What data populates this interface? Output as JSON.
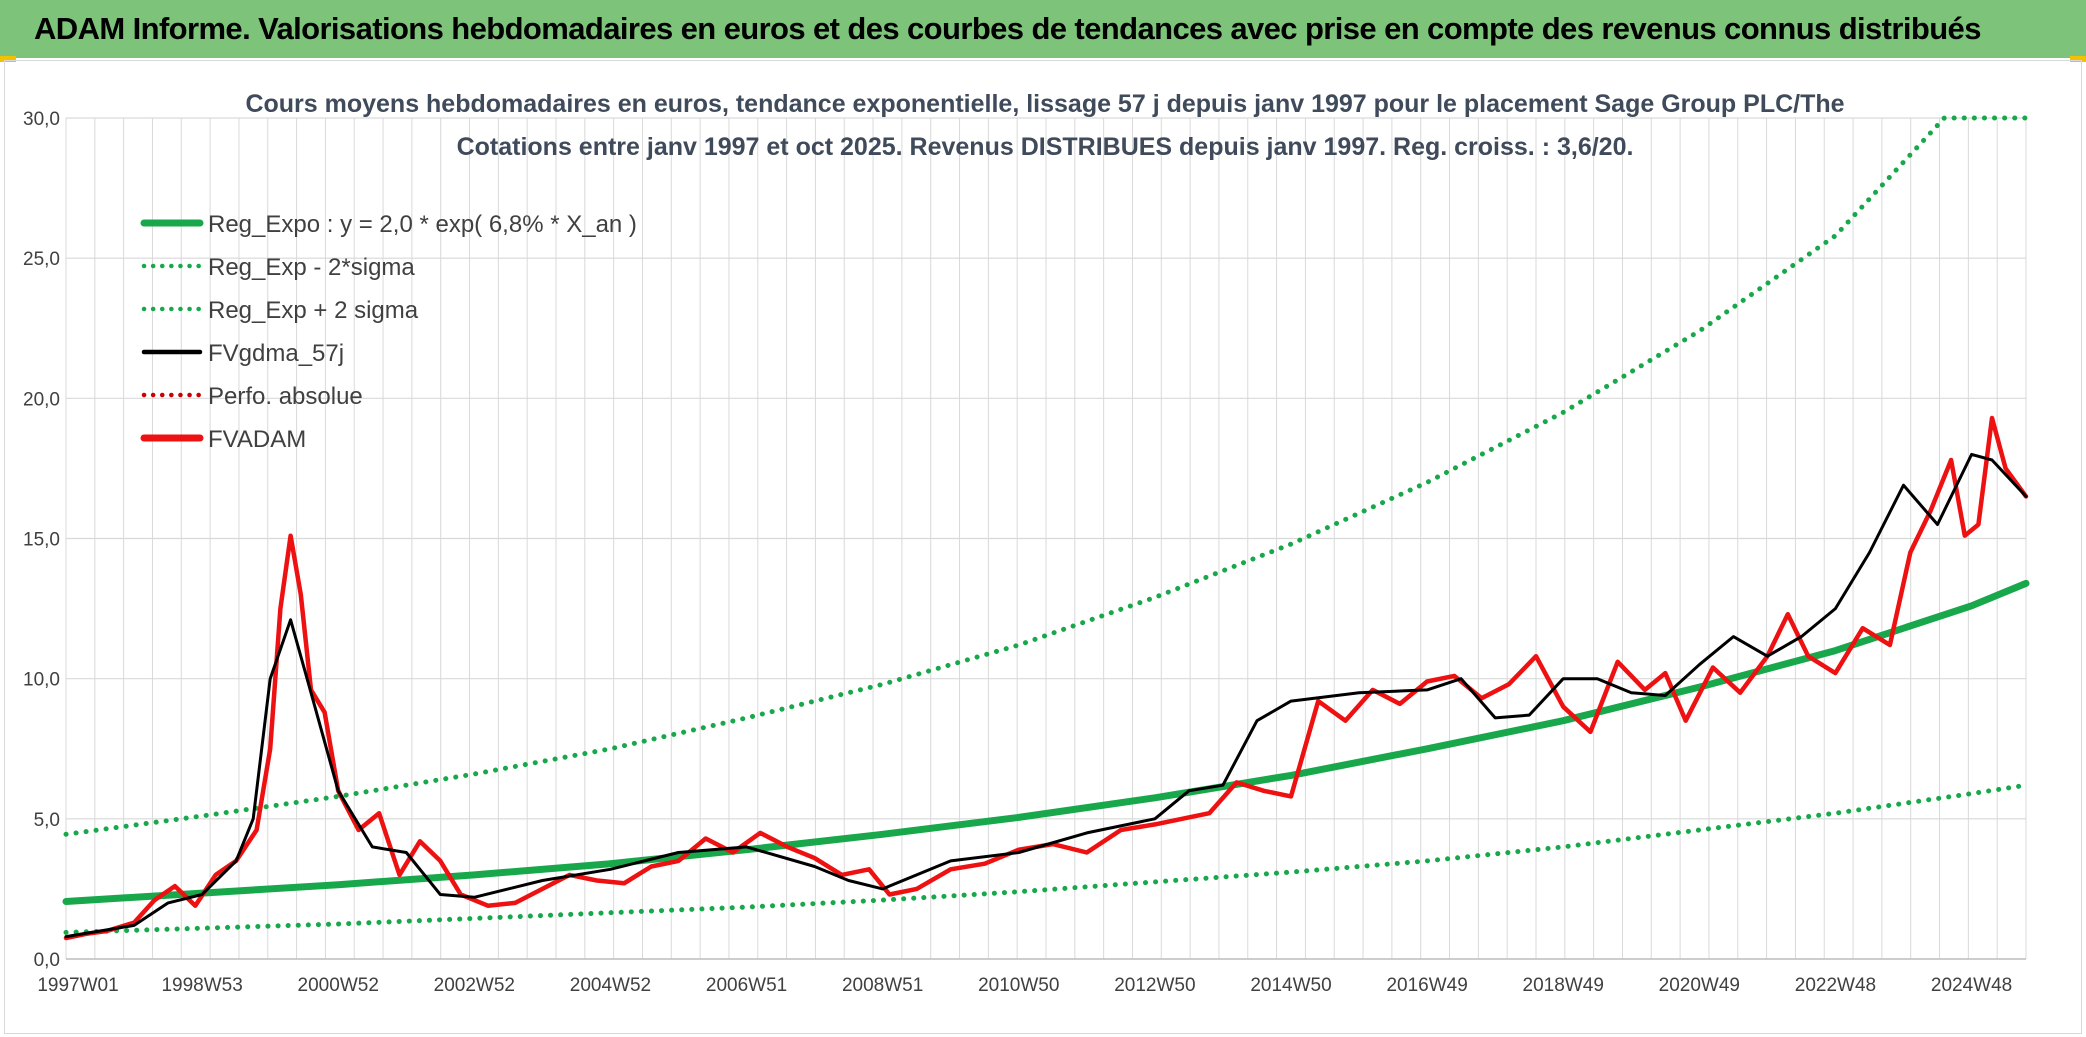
{
  "header": {
    "title": "ADAM Informe. Valorisations hebdomadaires en euros et des courbes de tendances avec prise en compte des revenus connus distribués"
  },
  "colors": {
    "header_bg": "#7dc47a",
    "regression": "#18a84b",
    "sigma_bands": "#18a84b",
    "smoothed": "#000000",
    "price": "#ee1111",
    "perf": "#cc0000",
    "grid": "#d9d9d9"
  },
  "chart_data": {
    "type": "line",
    "title": "Cours moyens hebdomadaires en euros, tendance exponentielle, lissage 57 j depuis janv 1997 pour le placement Sage Group PLC/The",
    "subtitle": "Cotations entre janv 1997 et oct 2025. Revenus DISTRIBUES depuis janv 1997. Reg. croiss. : 3,6/20.",
    "xlabel": "",
    "ylabel": "",
    "xlim": [
      1997.0,
      2025.8
    ],
    "ylim": [
      0,
      30
    ],
    "y_ticks": [
      "0,0",
      "5,0",
      "10,0",
      "15,0",
      "20,0",
      "25,0",
      "30,0"
    ],
    "y_tick_values": [
      0,
      5,
      10,
      15,
      20,
      25,
      30
    ],
    "x_ticks": [
      "1997W01",
      "1998W53",
      "2000W52",
      "2002W52",
      "2004W52",
      "2006W51",
      "2008W51",
      "2010W50",
      "2012W50",
      "2014W50",
      "2016W49",
      "2018W49",
      "2020W49",
      "2022W48",
      "2024W48"
    ],
    "x_tick_values": [
      1997.0,
      1999.0,
      2001.0,
      2003.0,
      2005.0,
      2007.0,
      2009.0,
      2011.0,
      2013.0,
      2015.0,
      2017.0,
      2019.0,
      2021.0,
      2023.0,
      2025.0
    ],
    "grid": true,
    "legend_position": "top-left",
    "legend": [
      {
        "label": "Reg_Expo : y = 2,0 * exp( 6,8% *  X_an )",
        "style": "solid-thick",
        "color": "#18a84b"
      },
      {
        "label": "Reg_Exp - 2*sigma",
        "style": "dotted",
        "color": "#18a84b"
      },
      {
        "label": "Reg_Exp + 2 sigma",
        "style": "dotted",
        "color": "#18a84b"
      },
      {
        "label": "FVgdma_57j",
        "style": "solid",
        "color": "#000000"
      },
      {
        "label": "Perfo. absolue",
        "style": "dotted",
        "color": "#cc0000"
      },
      {
        "label": "FVADAM",
        "style": "solid-thick",
        "color": "#ee1111"
      }
    ],
    "series": [
      {
        "name": "Reg_Expo : y = 2,0 * exp( 6,8% *  X_an )",
        "x": [
          1997.0,
          1999.0,
          2001.0,
          2003.0,
          2005.0,
          2007.0,
          2009.0,
          2011.0,
          2013.0,
          2015.0,
          2017.0,
          2019.0,
          2021.0,
          2023.0,
          2025.0,
          2025.8
        ],
        "y": [
          2.05,
          2.35,
          2.65,
          3.0,
          3.4,
          3.9,
          4.45,
          5.05,
          5.75,
          6.55,
          7.5,
          8.5,
          9.7,
          11.0,
          12.6,
          13.4
        ]
      },
      {
        "name": "Reg_Exp - 2*sigma",
        "x": [
          1997.0,
          1999.0,
          2001.0,
          2003.0,
          2005.0,
          2007.0,
          2009.0,
          2011.0,
          2013.0,
          2015.0,
          2017.0,
          2019.0,
          2021.0,
          2023.0,
          2025.0,
          2025.8
        ],
        "y": [
          0.95,
          1.1,
          1.25,
          1.45,
          1.65,
          1.85,
          2.1,
          2.4,
          2.75,
          3.1,
          3.5,
          4.0,
          4.6,
          5.2,
          5.9,
          6.2
        ]
      },
      {
        "name": "Reg_Exp + 2 sigma",
        "x": [
          1997.0,
          1999.0,
          2001.0,
          2003.0,
          2005.0,
          2007.0,
          2009.0,
          2011.0,
          2013.0,
          2015.0,
          2017.0,
          2019.0,
          2021.0,
          2023.0,
          2024.6,
          2025.8
        ],
        "y": [
          4.45,
          5.1,
          5.8,
          6.6,
          7.5,
          8.6,
          9.8,
          11.2,
          12.9,
          14.8,
          17.0,
          19.5,
          22.4,
          25.8,
          30.0,
          30.0
        ]
      },
      {
        "name": "FVgdma_57j",
        "x": [
          1997.0,
          1997.5,
          1998.0,
          1998.5,
          1999.0,
          1999.5,
          1999.75,
          2000.0,
          2000.3,
          2000.6,
          2001.0,
          2001.5,
          2002.0,
          2002.5,
          2003.0,
          2004.0,
          2005.0,
          2006.0,
          2007.0,
          2008.0,
          2008.5,
          2009.0,
          2010.0,
          2011.0,
          2012.0,
          2013.0,
          2013.5,
          2014.0,
          2014.5,
          2015.0,
          2016.0,
          2017.0,
          2017.5,
          2018.0,
          2018.5,
          2019.0,
          2019.5,
          2020.0,
          2020.5,
          2021.0,
          2021.5,
          2022.0,
          2022.5,
          2023.0,
          2023.5,
          2024.0,
          2024.5,
          2025.0,
          2025.3,
          2025.8
        ],
        "y": [
          0.8,
          1.0,
          1.2,
          2.0,
          2.3,
          3.5,
          5.0,
          10.0,
          12.1,
          9.5,
          6.0,
          4.0,
          3.8,
          2.3,
          2.2,
          2.8,
          3.2,
          3.8,
          4.0,
          3.3,
          2.8,
          2.5,
          3.5,
          3.8,
          4.5,
          5.0,
          6.0,
          6.2,
          8.5,
          9.2,
          9.5,
          9.6,
          10.0,
          8.6,
          8.7,
          10.0,
          10.0,
          9.5,
          9.4,
          10.5,
          11.5,
          10.8,
          11.5,
          12.5,
          14.5,
          16.9,
          15.5,
          18.0,
          17.8,
          16.5
        ]
      },
      {
        "name": "FVADAM",
        "x": [
          1997.0,
          1997.3,
          1997.6,
          1998.0,
          1998.3,
          1998.6,
          1998.9,
          1999.2,
          1999.5,
          1999.8,
          2000.0,
          2000.15,
          2000.3,
          2000.45,
          2000.6,
          2000.8,
          2001.0,
          2001.3,
          2001.6,
          2001.9,
          2002.2,
          2002.5,
          2002.8,
          2003.2,
          2003.6,
          2004.0,
          2004.4,
          2004.8,
          2005.2,
          2005.6,
          2006.0,
          2006.4,
          2006.8,
          2007.2,
          2007.6,
          2008.0,
          2008.4,
          2008.8,
          2009.1,
          2009.5,
          2010.0,
          2010.5,
          2011.0,
          2011.5,
          2012.0,
          2012.5,
          2013.0,
          2013.4,
          2013.8,
          2014.2,
          2014.6,
          2015.0,
          2015.4,
          2015.8,
          2016.2,
          2016.6,
          2017.0,
          2017.4,
          2017.8,
          2018.2,
          2018.6,
          2019.0,
          2019.4,
          2019.8,
          2020.2,
          2020.5,
          2020.8,
          2021.2,
          2021.6,
          2022.0,
          2022.3,
          2022.6,
          2023.0,
          2023.4,
          2023.8,
          2024.1,
          2024.4,
          2024.7,
          2024.9,
          2025.1,
          2025.3,
          2025.5,
          2025.8
        ],
        "y": [
          0.75,
          0.9,
          1.0,
          1.3,
          2.1,
          2.6,
          1.9,
          3.0,
          3.5,
          4.6,
          7.5,
          12.5,
          15.1,
          13.0,
          9.6,
          8.8,
          6.0,
          4.6,
          5.2,
          3.0,
          4.2,
          3.5,
          2.3,
          1.9,
          2.0,
          2.5,
          3.0,
          2.8,
          2.7,
          3.3,
          3.5,
          4.3,
          3.8,
          4.5,
          4.0,
          3.6,
          3.0,
          3.2,
          2.3,
          2.5,
          3.2,
          3.4,
          3.9,
          4.1,
          3.8,
          4.6,
          4.8,
          5.0,
          5.2,
          6.3,
          6.0,
          5.8,
          9.2,
          8.5,
          9.6,
          9.1,
          9.9,
          10.1,
          9.3,
          9.8,
          10.8,
          9.0,
          8.1,
          10.6,
          9.6,
          10.2,
          8.5,
          10.4,
          9.5,
          10.8,
          12.3,
          10.8,
          10.2,
          11.8,
          11.2,
          14.5,
          16.0,
          17.8,
          15.1,
          15.5,
          19.3,
          17.5,
          16.5
        ]
      }
    ]
  }
}
